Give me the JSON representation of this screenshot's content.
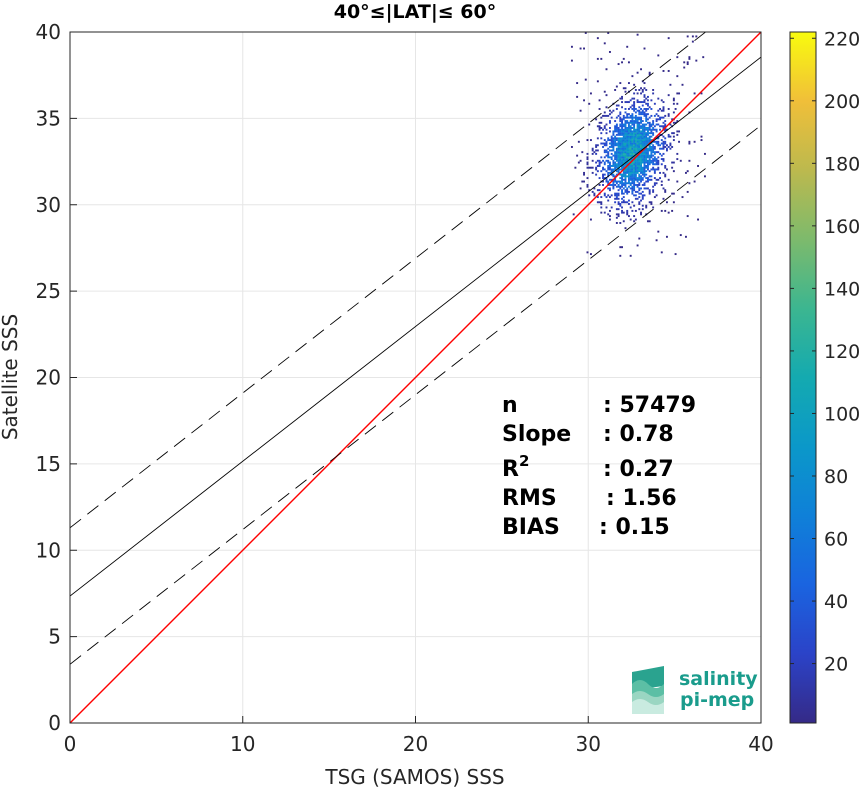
{
  "chart_data": {
    "type": "heatmap",
    "title": "40°≤|LAT|≤ 60°",
    "xlabel": "TSG (SAMOS) SSS",
    "ylabel": "Satellite SSS",
    "xlim": [
      0,
      40
    ],
    "ylim": [
      0,
      40
    ],
    "x_ticks": [
      0,
      10,
      20,
      30,
      40
    ],
    "y_ticks": [
      0,
      5,
      10,
      15,
      20,
      25,
      30,
      35,
      40
    ],
    "grid": true,
    "colorbar": {
      "colormap": "parula",
      "range": [
        1,
        222
      ],
      "ticks": [
        20,
        40,
        60,
        80,
        100,
        120,
        140,
        160,
        180,
        200,
        220
      ]
    },
    "density_cluster": {
      "center_x": 32.5,
      "center_y": 33.0,
      "x_range": [
        29,
        37
      ],
      "y_range": [
        27,
        40
      ],
      "peak_count": 130
    },
    "reference_lines": [
      {
        "name": "1:1",
        "color": "#ff0000",
        "style": "solid",
        "intercept": 0,
        "slope": 1
      },
      {
        "name": "fit",
        "color": "#000000",
        "style": "solid",
        "intercept": 7.35,
        "slope": 0.78
      },
      {
        "name": "fit_upper",
        "color": "#000000",
        "style": "dashed",
        "intercept": 11.3,
        "slope": 0.78
      },
      {
        "name": "fit_lower",
        "color": "#000000",
        "style": "dashed",
        "intercept": 3.4,
        "slope": 0.78
      }
    ],
    "stats": [
      {
        "label": "n",
        "value": ": 57479"
      },
      {
        "label": "Slope",
        "value": ": 0.78"
      },
      {
        "label": "R",
        "sup": "2",
        "value": ": 0.27"
      },
      {
        "label": "RMS",
        "value": ": 1.56"
      },
      {
        "label": "BIAS",
        "value": ": 0.15"
      }
    ]
  },
  "logo": {
    "line1": "salinity",
    "line2": "pi-mep",
    "color": "#1a9c8c"
  }
}
